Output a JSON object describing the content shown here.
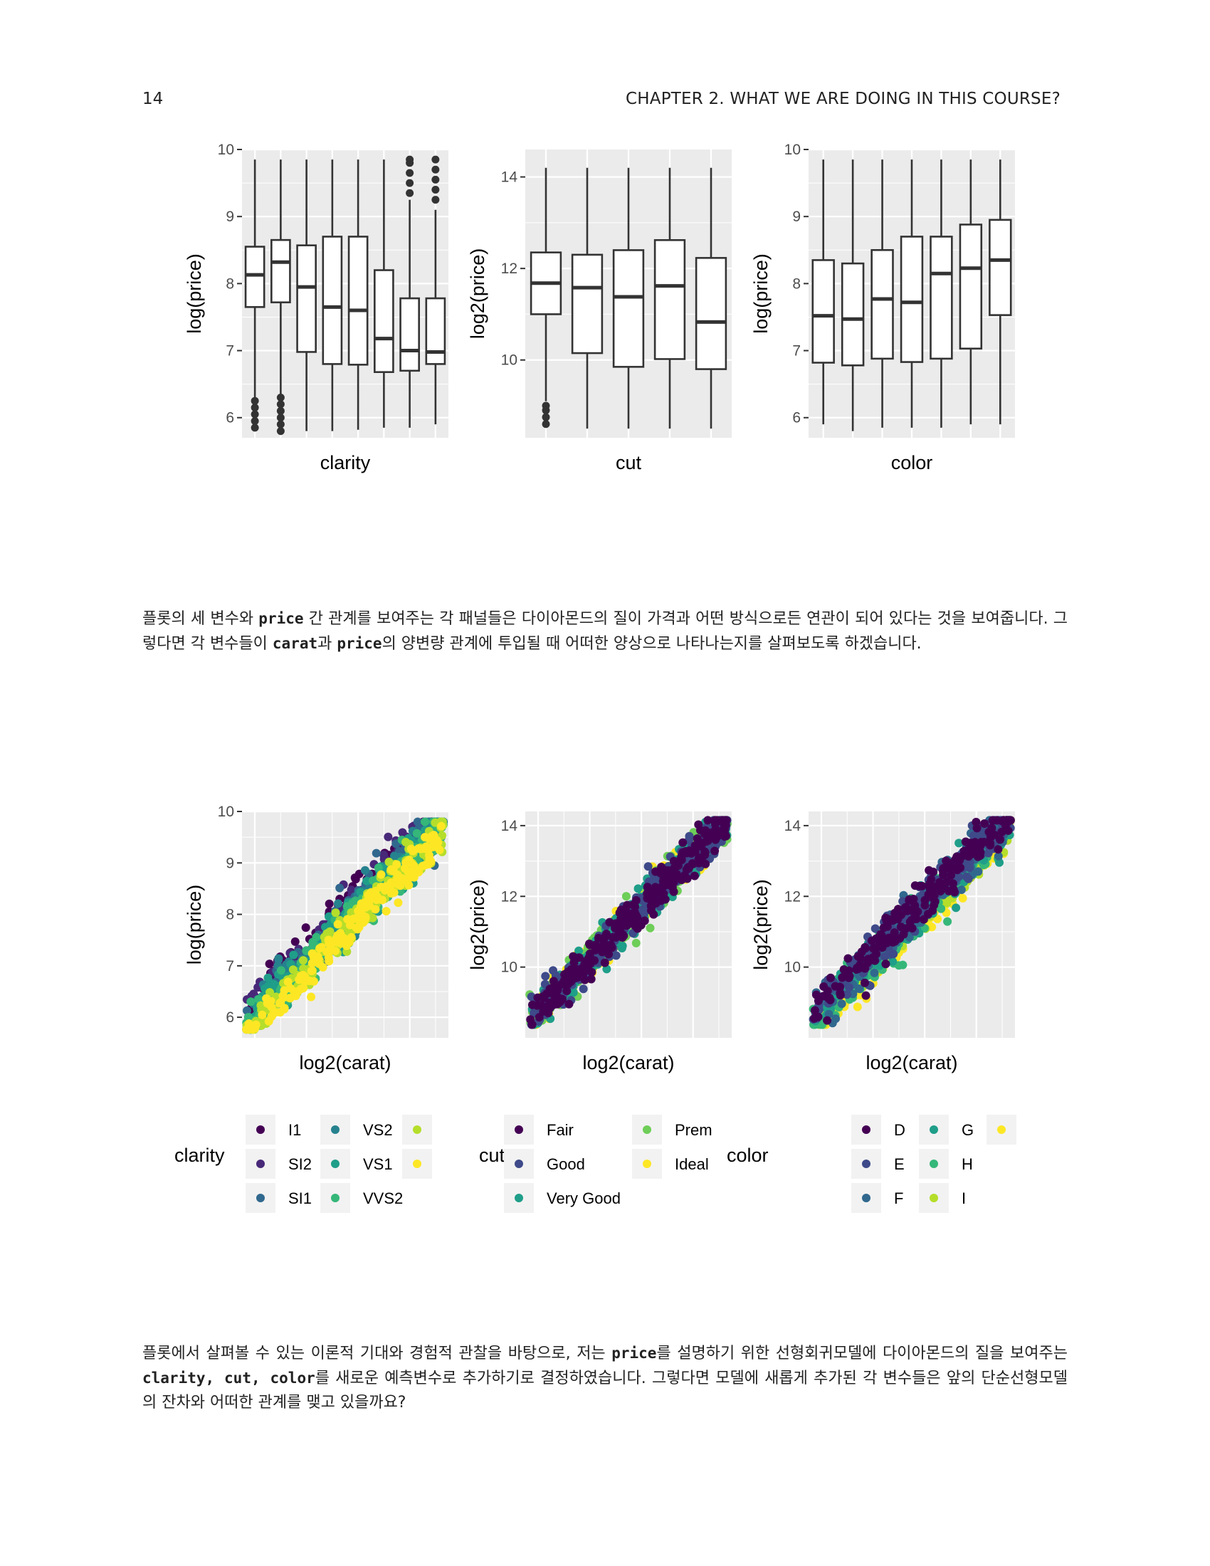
{
  "header": {
    "page_number": "14",
    "chapter": "CHAPTER 2.  WHAT WE ARE DOING IN THIS COURSE?"
  },
  "colors": {
    "panel_bg": "#ebebeb",
    "grid": "#ffffff",
    "viridis": [
      "#440154",
      "#482878",
      "#3e4a89",
      "#31688e",
      "#26828e",
      "#1f9e89",
      "#35b779",
      "#6ece58",
      "#b5de2b",
      "#fde725"
    ]
  },
  "chart_data": [
    {
      "type": "box",
      "xlabel": "clarity",
      "ylabel": "log(price)",
      "ylim": [
        5.7,
        10.0
      ],
      "yticks": [
        6,
        7,
        8,
        9,
        10
      ],
      "boxes": [
        {
          "whisker_low": 5.9,
          "q1": 7.65,
          "median": 8.13,
          "q3": 8.55,
          "whisker_high": 9.85,
          "outliers": [
            5.85,
            5.95,
            6.05,
            6.15,
            6.25
          ]
        },
        {
          "whisker_low": 6.35,
          "q1": 7.72,
          "median": 8.32,
          "q3": 8.65,
          "whisker_high": 9.85,
          "outliers": [
            5.8,
            5.9,
            6.0,
            6.1,
            6.2,
            6.3
          ]
        },
        {
          "whisker_low": 5.8,
          "q1": 6.98,
          "median": 7.95,
          "q3": 8.57,
          "whisker_high": 9.85,
          "outliers": []
        },
        {
          "whisker_low": 5.8,
          "q1": 6.8,
          "median": 7.65,
          "q3": 8.7,
          "whisker_high": 9.85,
          "outliers": []
        },
        {
          "whisker_low": 5.82,
          "q1": 6.79,
          "median": 7.6,
          "q3": 8.7,
          "whisker_high": 9.85,
          "outliers": []
        },
        {
          "whisker_low": 5.85,
          "q1": 6.68,
          "median": 7.18,
          "q3": 8.2,
          "whisker_high": 9.85,
          "outliers": []
        },
        {
          "whisker_low": 5.85,
          "q1": 6.7,
          "median": 7.0,
          "q3": 7.78,
          "whisker_high": 9.25,
          "outliers": [
            9.35,
            9.5,
            9.65,
            9.8,
            9.85
          ]
        },
        {
          "whisker_low": 5.9,
          "q1": 6.8,
          "median": 6.98,
          "q3": 7.78,
          "whisker_high": 9.1,
          "outliers": [
            9.25,
            9.4,
            9.55,
            9.7,
            9.85
          ]
        }
      ]
    },
    {
      "type": "box",
      "xlabel": "cut",
      "ylabel": "log2(price)",
      "ylim": [
        8.3,
        14.6
      ],
      "yticks": [
        10,
        12,
        14
      ],
      "boxes": [
        {
          "whisker_low": 9.1,
          "q1": 11.0,
          "median": 11.68,
          "q3": 12.35,
          "whisker_high": 14.2,
          "outliers": [
            8.6,
            8.75,
            8.9,
            9.0
          ]
        },
        {
          "whisker_low": 8.5,
          "q1": 10.15,
          "median": 11.58,
          "q3": 12.3,
          "whisker_high": 14.2,
          "outliers": []
        },
        {
          "whisker_low": 8.5,
          "q1": 9.85,
          "median": 11.38,
          "q3": 12.4,
          "whisker_high": 14.2,
          "outliers": []
        },
        {
          "whisker_low": 8.5,
          "q1": 10.02,
          "median": 11.62,
          "q3": 12.62,
          "whisker_high": 14.2,
          "outliers": []
        },
        {
          "whisker_low": 8.5,
          "q1": 9.8,
          "median": 10.83,
          "q3": 12.23,
          "whisker_high": 14.2,
          "outliers": []
        }
      ]
    },
    {
      "type": "box",
      "xlabel": "color",
      "ylabel": "log(price)",
      "ylim": [
        5.7,
        10.0
      ],
      "yticks": [
        6,
        7,
        8,
        9,
        10
      ],
      "boxes": [
        {
          "whisker_low": 5.9,
          "q1": 6.82,
          "median": 7.52,
          "q3": 8.35,
          "whisker_high": 9.85,
          "outliers": []
        },
        {
          "whisker_low": 5.8,
          "q1": 6.78,
          "median": 7.47,
          "q3": 8.3,
          "whisker_high": 9.85,
          "outliers": []
        },
        {
          "whisker_low": 5.85,
          "q1": 6.88,
          "median": 7.77,
          "q3": 8.5,
          "whisker_high": 9.85,
          "outliers": []
        },
        {
          "whisker_low": 5.85,
          "q1": 6.83,
          "median": 7.72,
          "q3": 8.7,
          "whisker_high": 9.85,
          "outliers": []
        },
        {
          "whisker_low": 5.85,
          "q1": 6.88,
          "median": 8.15,
          "q3": 8.7,
          "whisker_high": 9.85,
          "outliers": []
        },
        {
          "whisker_low": 5.9,
          "q1": 7.03,
          "median": 8.23,
          "q3": 8.88,
          "whisker_high": 9.85,
          "outliers": []
        },
        {
          "whisker_low": 5.9,
          "q1": 7.53,
          "median": 8.35,
          "q3": 8.95,
          "whisker_high": 9.85,
          "outliers": []
        }
      ]
    },
    {
      "type": "scatter",
      "xlabel": "log2(carat)",
      "ylabel": "log(price)",
      "xlim": [
        -2.4,
        2.4
      ],
      "ylim": [
        5.6,
        10.0
      ],
      "yticks": [
        6,
        7,
        8,
        9,
        10
      ],
      "band": {
        "x_start": -2.3,
        "x_end": 2.3,
        "y_start": 5.85,
        "y_end": 9.8
      },
      "legend": {
        "title": "clarity",
        "entries": [
          "I1",
          "SI2",
          "SI1",
          "VS2",
          "VS1",
          "VVS2",
          "",
          ""
        ]
      }
    },
    {
      "type": "scatter",
      "xlabel": "log2(carat)",
      "ylabel": "log2(price)",
      "xlim": [
        -2.4,
        2.4
      ],
      "ylim": [
        8.0,
        14.4
      ],
      "yticks": [
        10,
        12,
        14
      ],
      "band": {
        "x_start": -2.3,
        "x_end": 2.3,
        "y_start": 8.5,
        "y_end": 14.15
      },
      "legend": {
        "title": "cut",
        "entries": [
          "Fair",
          "Good",
          "Very Good",
          "Prem",
          "Ideal"
        ]
      }
    },
    {
      "type": "scatter",
      "xlabel": "log2(carat)",
      "ylabel": "log2(price)",
      "xlim": [
        -2.4,
        2.4
      ],
      "ylim": [
        8.0,
        14.4
      ],
      "yticks": [
        10,
        12,
        14
      ],
      "band": {
        "x_start": -2.3,
        "x_end": 2.3,
        "y_start": 8.5,
        "y_end": 14.15
      },
      "legend": {
        "title": "color",
        "entries": [
          "D",
          "E",
          "F",
          "G",
          "H",
          "I",
          ""
        ]
      }
    }
  ],
  "paragraphs": {
    "p1": [
      {
        "t": "플롯의 세 변수와 "
      },
      {
        "c": "price"
      },
      {
        "t": " 간 관계를 보여주는 각 패널들은 다이아몬드의 질이 가격과 어떤 방식으로든 연관이 되어 있다는 것을 보여줍니다.  그렇다면 각 변수들이 "
      },
      {
        "c": "carat"
      },
      {
        "t": "과 "
      },
      {
        "c": "price"
      },
      {
        "t": "의 양변량 관계에 투입될 때 어떠한 양상으로 나타나는지를 살펴보도록 하겠습니다."
      }
    ],
    "p2": [
      {
        "t": "플롯에서 살펴볼 수 있는 이론적 기대와 경험적 관찰을 바탕으로, 저는 "
      },
      {
        "c": "price"
      },
      {
        "t": "를 설명하기 위한 선형회귀모델에 다이아몬드의 질을 보여주는 "
      },
      {
        "c": "clarity, cut, color"
      },
      {
        "t": "를 새로운 예측변수로 추가하기로 결정하였습니다.  그렇다면 모델에 새롭게 추가된 각 변수들은 앞의 단순선형모델의 잔차와 어떠한 관계를 맺고 있을까요?"
      }
    ]
  }
}
